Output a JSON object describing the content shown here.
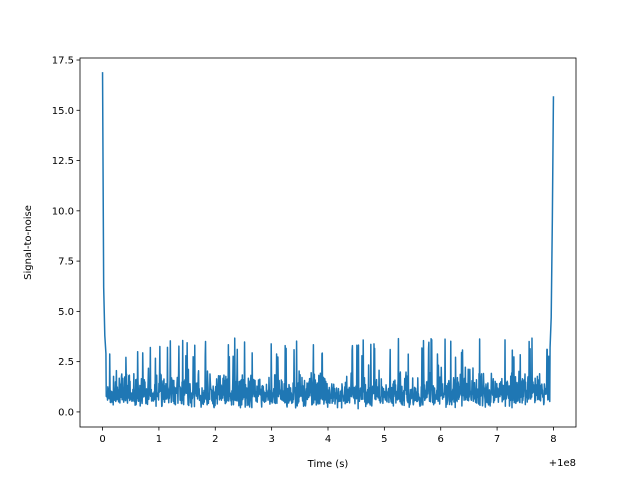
{
  "chart_data": {
    "type": "line",
    "title": "",
    "xlabel": "Time (s)",
    "ylabel": "Signal-to-noise",
    "x_offset_label": "+1e8",
    "xlim": [
      -0.4,
      8.4
    ],
    "ylim": [
      -0.75,
      17.6
    ],
    "xticks": [
      0,
      1,
      2,
      3,
      4,
      5,
      6,
      7,
      8
    ],
    "yticks": [
      0.0,
      2.5,
      5.0,
      7.5,
      10.0,
      12.5,
      15.0,
      17.5
    ],
    "ytick_labels": [
      "0.0",
      "2.5",
      "5.0",
      "7.5",
      "10.0",
      "12.5",
      "15.0",
      "17.5"
    ],
    "grid": false,
    "line_color": "#1f77b4",
    "series": [
      {
        "x_range": [
          0,
          8
        ],
        "noise_range": [
          0.0,
          3.7
        ],
        "typical_level": 1.0,
        "x": [
          0.0,
          0.02,
          0.04,
          0.06,
          7.94,
          7.96,
          7.98,
          8.0
        ],
        "values": [
          16.9,
          6.2,
          3.8,
          2.9,
          3.2,
          4.7,
          9.5,
          15.7
        ]
      }
    ]
  }
}
